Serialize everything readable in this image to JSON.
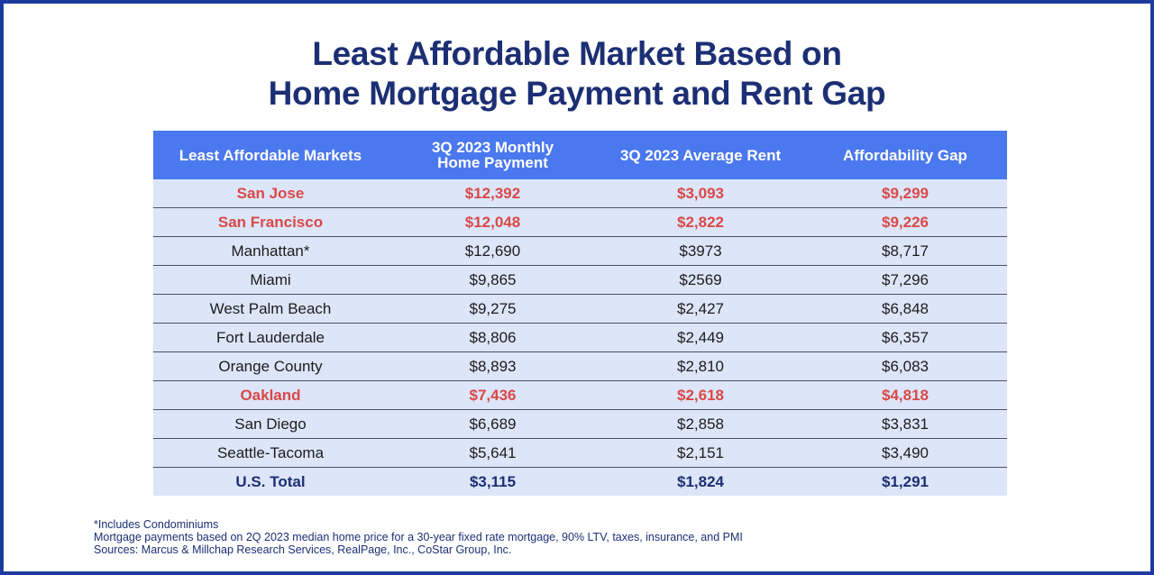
{
  "title": {
    "line1": "Least Affordable Market Based on",
    "line2": "Home Mortgage Payment and Rent Gap"
  },
  "table": {
    "headers": [
      [
        "Least Affordable Markets"
      ],
      [
        "3Q 2023 Monthly",
        "Home Payment"
      ],
      [
        "3Q 2023 Average Rent"
      ],
      [
        "Affordability Gap"
      ]
    ],
    "rows": [
      {
        "style": "hl",
        "cells": [
          "San Jose",
          "$12,392",
          "$3,093",
          "$9,299"
        ]
      },
      {
        "style": "hl",
        "cells": [
          "San Francisco",
          "$12,048",
          "$2,822",
          "$9,226"
        ]
      },
      {
        "style": "",
        "cells": [
          "Manhattan*",
          "$12,690",
          "$3973",
          "$8,717"
        ]
      },
      {
        "style": "",
        "cells": [
          "Miami",
          "$9,865",
          "$2569",
          "$7,296"
        ]
      },
      {
        "style": "",
        "cells": [
          "West Palm Beach",
          "$9,275",
          "$2,427",
          "$6,848"
        ]
      },
      {
        "style": "",
        "cells": [
          "Fort Lauderdale",
          "$8,806",
          "$2,449",
          "$6,357"
        ]
      },
      {
        "style": "",
        "cells": [
          "Orange County",
          "$8,893",
          "$2,810",
          "$6,083"
        ]
      },
      {
        "style": "hl",
        "cells": [
          "Oakland",
          "$7,436",
          "$2,618",
          "$4,818"
        ]
      },
      {
        "style": "",
        "cells": [
          "San Diego",
          "$6,689",
          "$2,858",
          "$3,831"
        ]
      },
      {
        "style": "",
        "cells": [
          "Seattle-Tacoma",
          "$5,641",
          "$2,151",
          "$3,490"
        ]
      },
      {
        "style": "total",
        "cells": [
          "U.S. Total",
          "$3,115",
          "$1,824",
          "$1,291"
        ]
      }
    ]
  },
  "footnotes": [
    "*Includes Condominiums",
    "Mortgage payments based on 2Q 2023 median home price for a 30-year fixed rate mortgage, 90% LTV, taxes, insurance, and PMI",
    "Sources: Marcus & Millchap Research Services, RealPage, Inc., CoStar Group, Inc."
  ],
  "colors": {
    "border": "#1f3a9e",
    "title": "#1c2f74",
    "header_bg": "#4a78ee",
    "row_bg": "#dde5f8",
    "highlight": "#d94948"
  }
}
